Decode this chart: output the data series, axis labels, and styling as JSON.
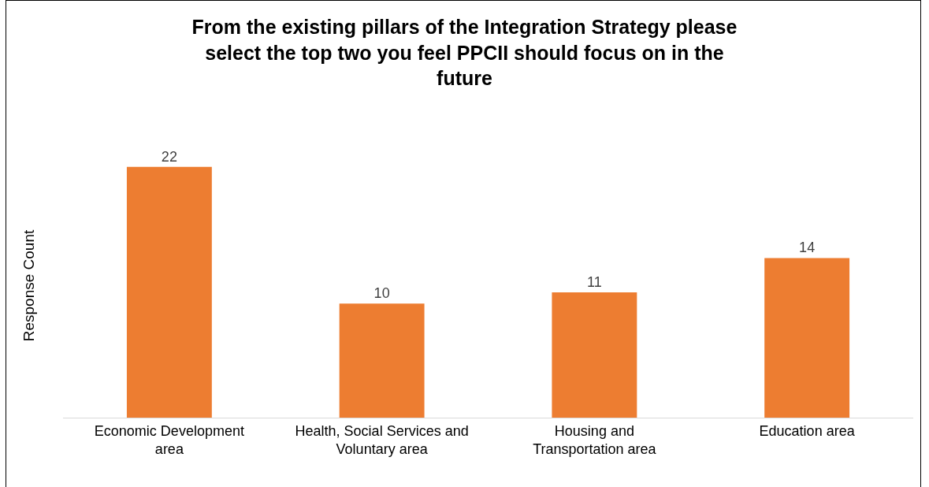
{
  "chart_data": {
    "type": "bar",
    "title": "From the existing pillars of the Integration Strategy please\nselect the top two you feel PPCII should focus on in the\nfuture",
    "ylabel": "Response Count",
    "categories": [
      "Economic Development\narea",
      "Health, Social Services and\nVoluntary area",
      "Housing and\nTransportation area",
      "Education area"
    ],
    "values": [
      22,
      10,
      11,
      14
    ],
    "color": "#ed7d31",
    "data_labels": true
  }
}
